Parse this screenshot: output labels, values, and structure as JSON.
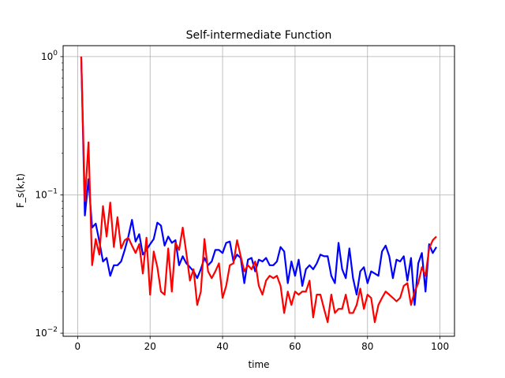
{
  "chart_data": {
    "type": "line",
    "title": "Self-intermediate Function",
    "xlabel": "time",
    "ylabel": "F_s(k,t)",
    "yscale": "log",
    "xlim": [
      -4,
      104
    ],
    "ylim": [
      0.0095,
      1.2
    ],
    "grid": true,
    "legend": "none",
    "x_ticks": [
      0,
      20,
      40,
      60,
      80,
      100
    ],
    "x_tick_labels": [
      "0",
      "20",
      "40",
      "60",
      "80",
      "100"
    ],
    "y_ticks": [
      1,
      0.1,
      0.01
    ],
    "y_tick_labels": [
      "10^0",
      "10^-1",
      "10^-2"
    ],
    "x": [
      1,
      2,
      3,
      4,
      5,
      6,
      7,
      8,
      9,
      10,
      11,
      12,
      13,
      14,
      15,
      16,
      17,
      18,
      19,
      20,
      21,
      22,
      23,
      24,
      25,
      26,
      27,
      28,
      29,
      30,
      31,
      32,
      33,
      34,
      35,
      36,
      37,
      38,
      39,
      40,
      41,
      42,
      43,
      44,
      45,
      46,
      47,
      48,
      49,
      50,
      51,
      52,
      53,
      54,
      55,
      56,
      57,
      58,
      59,
      60,
      61,
      62,
      63,
      64,
      65,
      66,
      67,
      68,
      69,
      70,
      71,
      72,
      73,
      74,
      75,
      76,
      77,
      78,
      79,
      80,
      81,
      82,
      83,
      84,
      85,
      86,
      87,
      88,
      89,
      90,
      91,
      92,
      93,
      94,
      95,
      96,
      97,
      98,
      99
    ],
    "series": [
      {
        "color": "#0000ff",
        "values": [
          1.0,
          0.071,
          0.13,
          0.058,
          0.062,
          0.046,
          0.033,
          0.035,
          0.026,
          0.031,
          0.031,
          0.033,
          0.04,
          0.05,
          0.066,
          0.046,
          0.052,
          0.037,
          0.04,
          0.044,
          0.048,
          0.063,
          0.06,
          0.043,
          0.05,
          0.045,
          0.047,
          0.031,
          0.036,
          0.032,
          0.03,
          0.028,
          0.025,
          0.029,
          0.035,
          0.031,
          0.033,
          0.04,
          0.04,
          0.038,
          0.045,
          0.046,
          0.033,
          0.037,
          0.035,
          0.023,
          0.034,
          0.035,
          0.028,
          0.034,
          0.033,
          0.035,
          0.031,
          0.031,
          0.033,
          0.042,
          0.039,
          0.023,
          0.033,
          0.026,
          0.034,
          0.022,
          0.029,
          0.031,
          0.029,
          0.032,
          0.037,
          0.036,
          0.036,
          0.026,
          0.023,
          0.045,
          0.029,
          0.025,
          0.041,
          0.025,
          0.019,
          0.028,
          0.03,
          0.023,
          0.028,
          0.027,
          0.026,
          0.039,
          0.043,
          0.036,
          0.025,
          0.034,
          0.033,
          0.036,
          0.024,
          0.035,
          0.016,
          0.032,
          0.038,
          0.02,
          0.044,
          0.038,
          0.042
        ]
      },
      {
        "color": "#ff0000",
        "values": [
          1.0,
          0.09,
          0.24,
          0.031,
          0.048,
          0.037,
          0.083,
          0.05,
          0.088,
          0.042,
          0.069,
          0.041,
          0.047,
          0.049,
          0.043,
          0.038,
          0.044,
          0.027,
          0.049,
          0.019,
          0.039,
          0.03,
          0.02,
          0.019,
          0.041,
          0.02,
          0.045,
          0.04,
          0.058,
          0.038,
          0.024,
          0.029,
          0.016,
          0.02,
          0.048,
          0.028,
          0.025,
          0.028,
          0.032,
          0.018,
          0.022,
          0.031,
          0.032,
          0.047,
          0.036,
          0.028,
          0.031,
          0.029,
          0.033,
          0.022,
          0.019,
          0.024,
          0.026,
          0.025,
          0.026,
          0.022,
          0.014,
          0.02,
          0.016,
          0.02,
          0.019,
          0.02,
          0.02,
          0.024,
          0.013,
          0.019,
          0.019,
          0.015,
          0.012,
          0.019,
          0.014,
          0.015,
          0.015,
          0.019,
          0.014,
          0.014,
          0.016,
          0.021,
          0.015,
          0.019,
          0.018,
          0.012,
          0.016,
          0.018,
          0.02,
          0.019,
          0.018,
          0.017,
          0.018,
          0.022,
          0.023,
          0.016,
          0.02,
          0.023,
          0.03,
          0.026,
          0.041,
          0.047,
          0.05
        ]
      }
    ]
  }
}
